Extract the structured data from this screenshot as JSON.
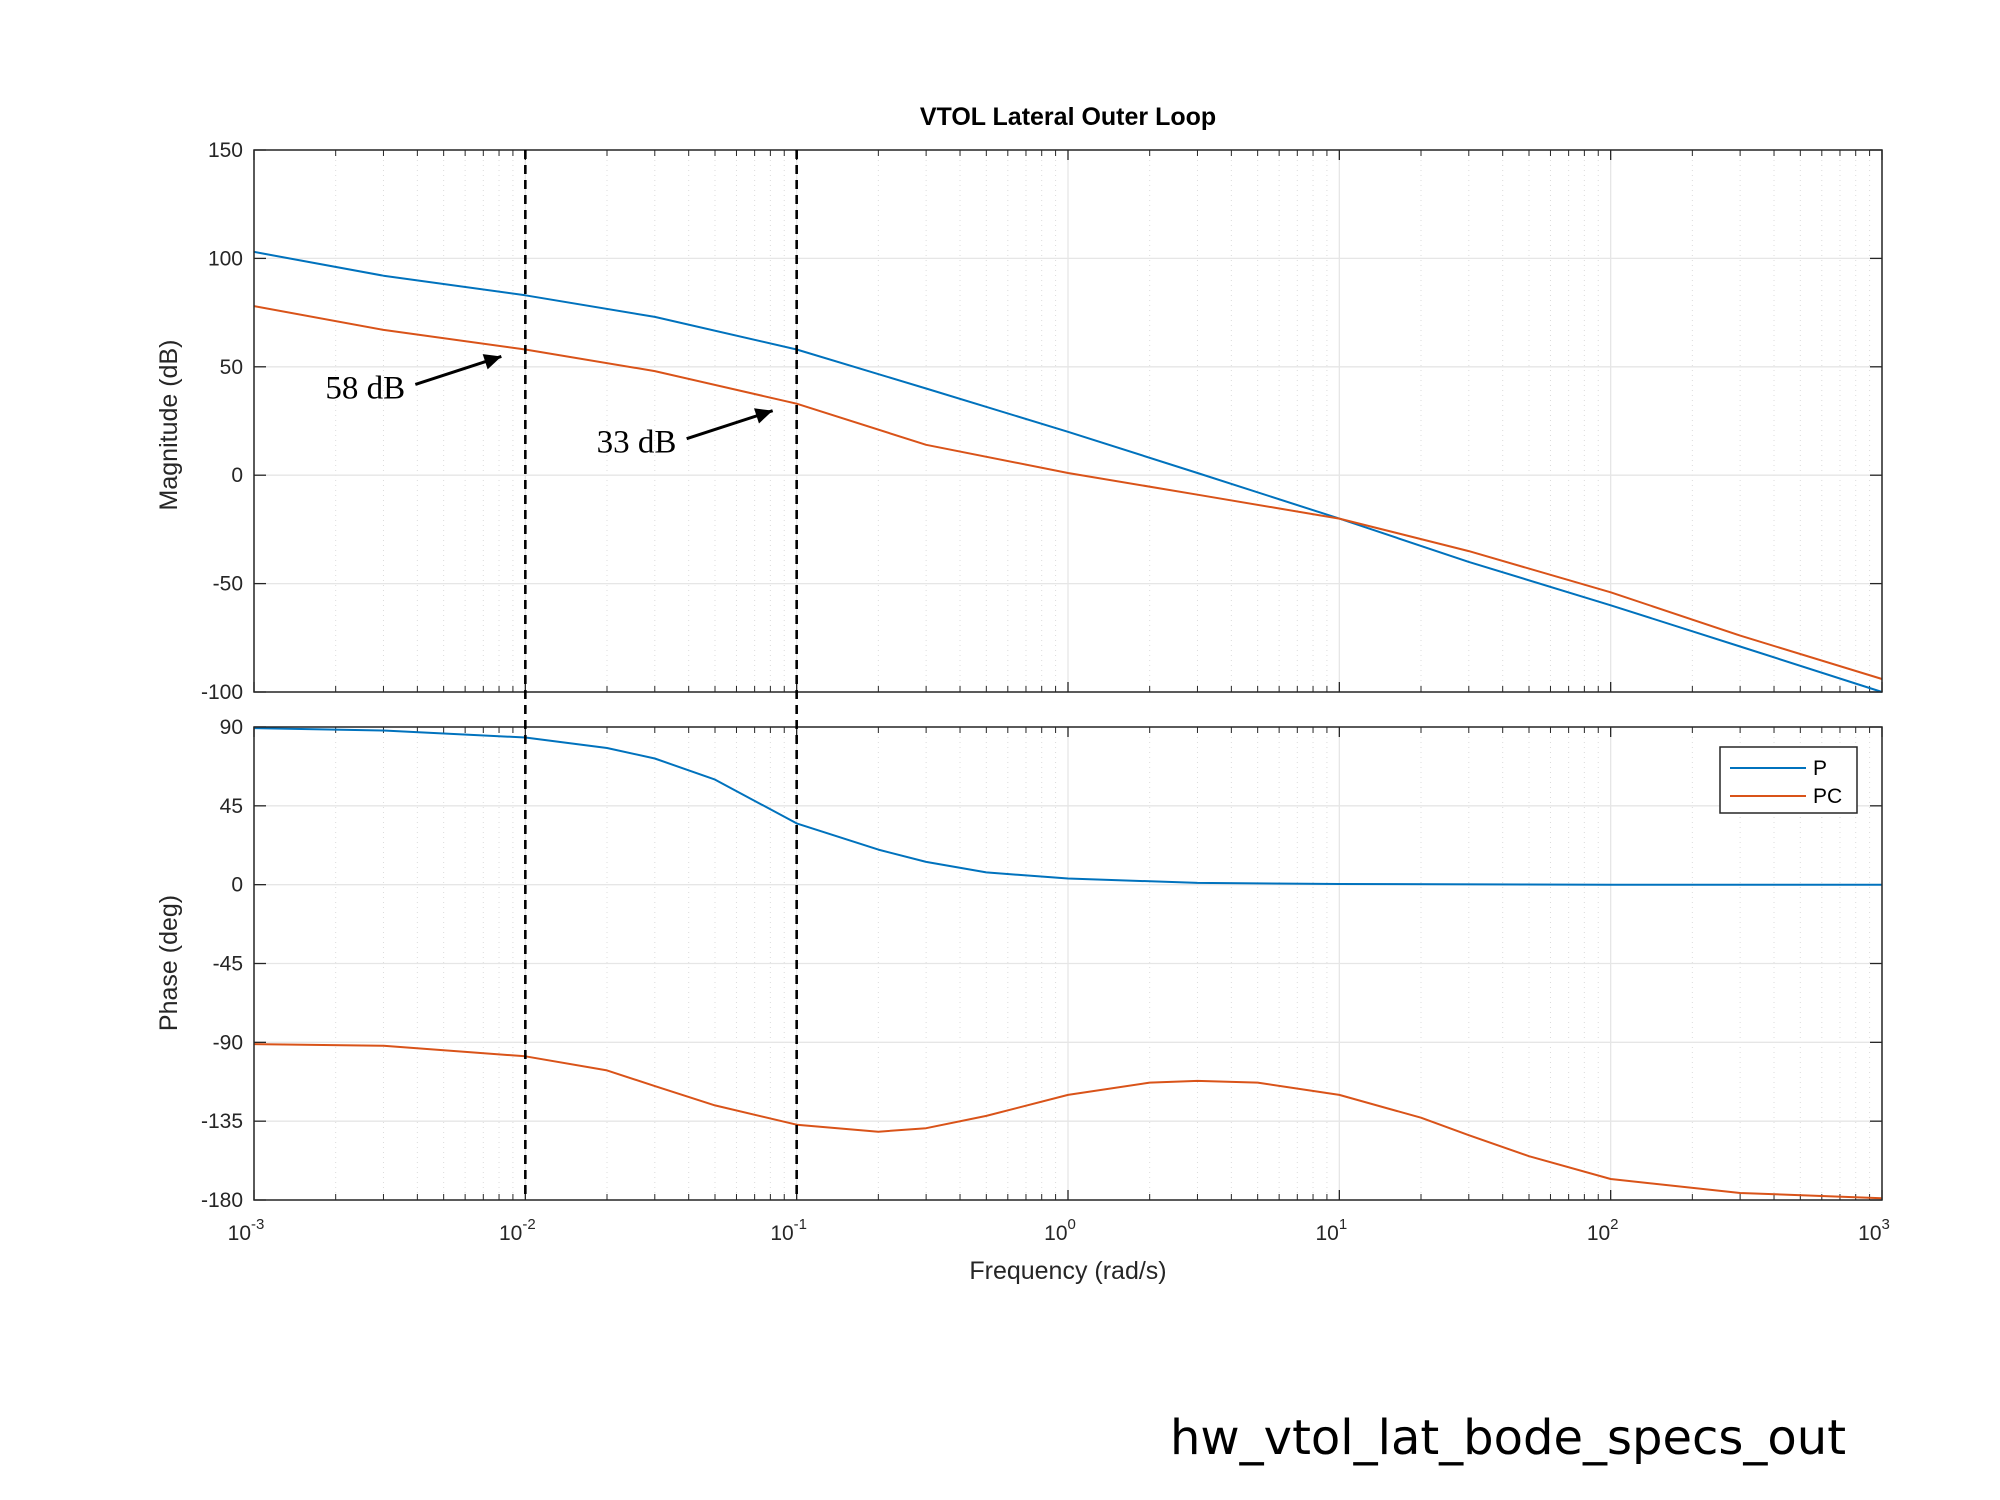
{
  "chart_data": {
    "type": "line",
    "title": "VTOL Lateral Outer Loop",
    "xlabel": "Frequency  (rad/s)",
    "xscale": "log",
    "xlim": [
      0.001,
      1000
    ],
    "x_tick_labels": [
      {
        "base": "10",
        "exp": "-3"
      },
      {
        "base": "10",
        "exp": "-2"
      },
      {
        "base": "10",
        "exp": "-1"
      },
      {
        "base": "10",
        "exp": "0"
      },
      {
        "base": "10",
        "exp": "1"
      },
      {
        "base": "10",
        "exp": "2"
      },
      {
        "base": "10",
        "exp": "3"
      }
    ],
    "grid": true,
    "legend_position": "top-right",
    "legend_labels": [
      "P",
      "PC"
    ],
    "colors": {
      "P": "#0072BD",
      "PC": "#D95319"
    },
    "subplots": [
      {
        "name": "magnitude",
        "ylabel": "Magnitude (dB)",
        "ylim": [
          -100,
          150
        ],
        "y_ticks": [
          "-100",
          "-50",
          "0",
          "50",
          "100",
          "150"
        ],
        "series": [
          {
            "name": "P",
            "points": [
              [
                0.001,
                103
              ],
              [
                0.003,
                92
              ],
              [
                0.01,
                83
              ],
              [
                0.03,
                73
              ],
              [
                0.1,
                58
              ],
              [
                0.3,
                40
              ],
              [
                1,
                20
              ],
              [
                3,
                1
              ],
              [
                10,
                -20
              ],
              [
                30,
                -40
              ],
              [
                100,
                -60
              ],
              [
                300,
                -79
              ],
              [
                1000,
                -100
              ]
            ]
          },
          {
            "name": "PC",
            "points": [
              [
                0.001,
                78
              ],
              [
                0.003,
                67
              ],
              [
                0.01,
                58
              ],
              [
                0.03,
                48
              ],
              [
                0.1,
                33
              ],
              [
                0.3,
                14
              ],
              [
                1,
                1
              ],
              [
                3,
                -9
              ],
              [
                10,
                -20
              ],
              [
                30,
                -35
              ],
              [
                100,
                -54
              ],
              [
                300,
                -74
              ],
              [
                1000,
                -94
              ]
            ]
          }
        ]
      },
      {
        "name": "phase",
        "ylabel": "Phase (deg)",
        "ylim": [
          -180,
          90
        ],
        "y_ticks": [
          "-180",
          "-135",
          "-90",
          "-45",
          "0",
          "45",
          "90"
        ],
        "series": [
          {
            "name": "P",
            "points": [
              [
                0.001,
                89.4
              ],
              [
                0.003,
                88
              ],
              [
                0.01,
                84
              ],
              [
                0.02,
                78
              ],
              [
                0.03,
                72
              ],
              [
                0.05,
                60
              ],
              [
                0.1,
                35
              ],
              [
                0.2,
                20
              ],
              [
                0.3,
                13
              ],
              [
                0.5,
                7
              ],
              [
                1,
                3.5
              ],
              [
                3,
                1
              ],
              [
                10,
                0.4
              ],
              [
                100,
                0
              ],
              [
                1000,
                0
              ]
            ]
          },
          {
            "name": "PC",
            "points": [
              [
                0.001,
                -91
              ],
              [
                0.003,
                -92
              ],
              [
                0.01,
                -98
              ],
              [
                0.02,
                -106
              ],
              [
                0.03,
                -115
              ],
              [
                0.05,
                -126
              ],
              [
                0.1,
                -137
              ],
              [
                0.2,
                -141
              ],
              [
                0.3,
                -139
              ],
              [
                0.5,
                -132
              ],
              [
                1,
                -120
              ],
              [
                2,
                -113
              ],
              [
                3,
                -112
              ],
              [
                5,
                -113
              ],
              [
                10,
                -120
              ],
              [
                20,
                -133
              ],
              [
                30,
                -143
              ],
              [
                50,
                -155
              ],
              [
                100,
                -168
              ],
              [
                300,
                -176
              ],
              [
                1000,
                -179
              ]
            ]
          }
        ]
      }
    ],
    "reference_lines_x": [
      0.01,
      0.1
    ],
    "annotations": [
      {
        "text": "58 dB",
        "x": 0.01,
        "y": 58
      },
      {
        "text": "33 dB",
        "x": 0.1,
        "y": 33
      }
    ]
  },
  "caption": "hw_vtol_lat_bode_specs_out"
}
